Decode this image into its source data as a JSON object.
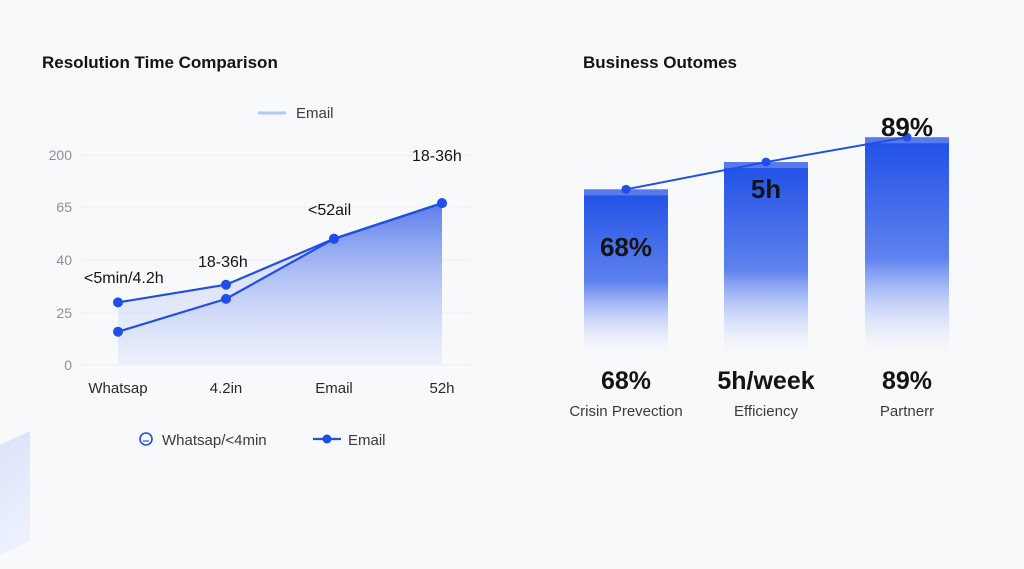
{
  "left_chart": {
    "title": "Resolution Time Comparison",
    "legend_top": {
      "label": "Email"
    },
    "legend_bottom": [
      {
        "label": "Whatsap/<4min",
        "marker": "hollow-circle"
      },
      {
        "label": "Email",
        "marker": "line-dot"
      }
    ]
  },
  "right_chart": {
    "title": "Business Outomes"
  },
  "colors": {
    "primary": "#1f4fe6",
    "area": "#9fb3f5",
    "legend_line": "#b8c8f5",
    "grid": "#eceef2"
  },
  "chart_data": [
    {
      "type": "area",
      "title": "Resolution Time Comparison",
      "categories": [
        "Whatsap",
        "4.2in",
        "Email",
        "52h"
      ],
      "y_ticks": [
        "0",
        "25",
        "40",
        "65",
        "200"
      ],
      "grid": true,
      "legend": "top-center",
      "series": [
        {
          "name": "Whatsap/<4min",
          "values": [
            28,
            33,
            50,
            75
          ],
          "point_labels": [
            "<5min/4.2h",
            "18-36h",
            "",
            ""
          ]
        },
        {
          "name": "Email",
          "values": [
            16,
            29,
            50,
            75
          ],
          "point_labels": [
            "",
            "",
            "<52ail",
            "18-36h"
          ]
        }
      ]
    },
    {
      "type": "bar",
      "title": "Business Outomes",
      "categories": [
        "Crisin Prevection",
        "Efficiency",
        "Partnerr"
      ],
      "values": [
        68,
        79,
        89
      ],
      "top_labels": [
        "68%",
        "5h",
        "89%"
      ],
      "bottom_values": [
        "68%",
        "5h/week",
        "89%"
      ],
      "trend_line": true,
      "ylim": [
        0,
        100
      ]
    }
  ]
}
